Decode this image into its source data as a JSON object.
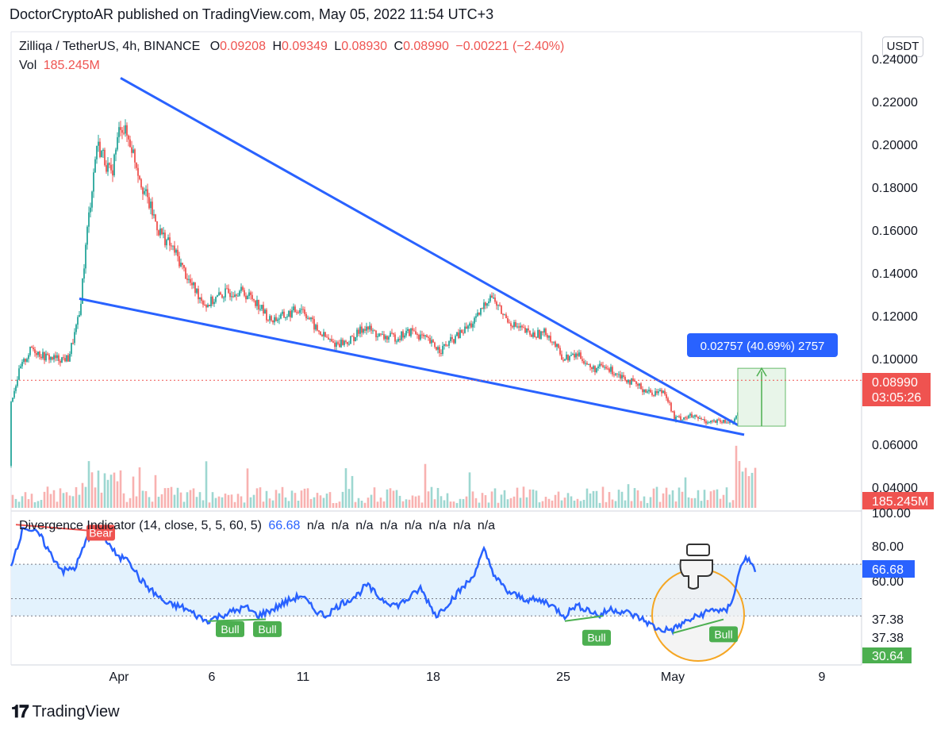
{
  "header": {
    "published_line": "DoctorCryptoAR published on TradingView.com, May 05, 2022 11:54 UTC+3"
  },
  "legend": {
    "symbol": "Zilliqa / TetherUS, 4h, BINANCE",
    "o_label": "O",
    "o_value": "0.09208",
    "h_label": "H",
    "h_value": "0.09349",
    "l_label": "L",
    "l_value": "0.08930",
    "c_label": "C",
    "c_value": "0.08990",
    "change": "−0.00221 (−2.40%)",
    "vol_label": "Vol",
    "vol_value": "185.245M"
  },
  "indicator_legend": {
    "name": "Divergence Indicator (14, close, 5, 5, 60, 5)",
    "value": "66.68",
    "na_values": [
      "n/a",
      "n/a",
      "n/a",
      "n/a",
      "n/a",
      "n/a",
      "n/a",
      "n/a"
    ]
  },
  "currency_button": "USDT",
  "footer": {
    "logo": "𝟏𝟕",
    "brand": "TradingView"
  },
  "colors": {
    "bull": "#26a69a",
    "bear": "#ef5350",
    "trendline": "#2962ff",
    "rsi_line": "#2962ff",
    "band_fill": "#e3f2fd",
    "bull_label": "#4caf50",
    "bear_label": "#ef5350",
    "measure_fill": "#e8f5e9",
    "measure_label": "#2962ff",
    "circle": "#f5a623"
  },
  "chart_data": [
    {
      "type": "candlestick",
      "title": "Zilliqa / TetherUS, 4h, BINANCE",
      "x_ticks": [
        "Apr",
        "6",
        "11",
        "18",
        "25",
        "May",
        "9"
      ],
      "y_ticks": [
        "0.24000",
        "0.22000",
        "0.20000",
        "0.18000",
        "0.16000",
        "0.14000",
        "0.12000",
        "0.10000",
        "0.06000",
        "0.04000"
      ],
      "ylim": [
        0.027,
        0.245
      ],
      "last_price_label": "0.08990",
      "countdown": "03:05:26",
      "volume_label": "185.245M",
      "price_anchors": [
        {
          "t": 0,
          "v": 0.05
        },
        {
          "t": 10,
          "v": 0.075
        },
        {
          "t": 25,
          "v": 0.095
        },
        {
          "t": 40,
          "v": 0.105
        },
        {
          "t": 55,
          "v": 0.101
        },
        {
          "t": 70,
          "v": 0.1
        },
        {
          "t": 86,
          "v": 0.1
        },
        {
          "t": 100,
          "v": 0.12
        },
        {
          "t": 110,
          "v": 0.16
        },
        {
          "t": 122,
          "v": 0.2
        },
        {
          "t": 130,
          "v": 0.195
        },
        {
          "t": 140,
          "v": 0.185
        },
        {
          "t": 152,
          "v": 0.21
        },
        {
          "t": 165,
          "v": 0.2
        },
        {
          "t": 180,
          "v": 0.18
        },
        {
          "t": 200,
          "v": 0.16
        },
        {
          "t": 220,
          "v": 0.15
        },
        {
          "t": 240,
          "v": 0.135
        },
        {
          "t": 260,
          "v": 0.125
        },
        {
          "t": 280,
          "v": 0.13
        },
        {
          "t": 300,
          "v": 0.132
        },
        {
          "t": 320,
          "v": 0.128
        },
        {
          "t": 340,
          "v": 0.118
        },
        {
          "t": 360,
          "v": 0.12
        },
        {
          "t": 380,
          "v": 0.124
        },
        {
          "t": 400,
          "v": 0.113
        },
        {
          "t": 420,
          "v": 0.107
        },
        {
          "t": 440,
          "v": 0.108
        },
        {
          "t": 460,
          "v": 0.115
        },
        {
          "t": 480,
          "v": 0.11
        },
        {
          "t": 500,
          "v": 0.11
        },
        {
          "t": 520,
          "v": 0.113
        },
        {
          "t": 540,
          "v": 0.108
        },
        {
          "t": 555,
          "v": 0.104
        },
        {
          "t": 575,
          "v": 0.11
        },
        {
          "t": 600,
          "v": 0.118
        },
        {
          "t": 618,
          "v": 0.13
        },
        {
          "t": 635,
          "v": 0.12
        },
        {
          "t": 650,
          "v": 0.115
        },
        {
          "t": 670,
          "v": 0.111
        },
        {
          "t": 690,
          "v": 0.112
        },
        {
          "t": 710,
          "v": 0.1
        },
        {
          "t": 730,
          "v": 0.102
        },
        {
          "t": 745,
          "v": 0.095
        },
        {
          "t": 760,
          "v": 0.096
        },
        {
          "t": 780,
          "v": 0.093
        },
        {
          "t": 800,
          "v": 0.088
        },
        {
          "t": 820,
          "v": 0.084
        },
        {
          "t": 838,
          "v": 0.085
        },
        {
          "t": 850,
          "v": 0.072
        },
        {
          "t": 870,
          "v": 0.073
        },
        {
          "t": 890,
          "v": 0.071
        },
        {
          "t": 915,
          "v": 0.07
        },
        {
          "t": 928,
          "v": 0.072
        },
        {
          "t": 935,
          "v": 0.08
        },
        {
          "t": 942,
          "v": 0.092
        },
        {
          "t": 948,
          "v": 0.093
        },
        {
          "t": 953,
          "v": 0.0899
        }
      ],
      "trendlines": [
        {
          "name": "upper-wedge",
          "from": {
            "t": 152,
            "v": 0.231
          },
          "to": {
            "t": 930,
            "v": 0.069
          }
        },
        {
          "name": "lower-wedge",
          "from": {
            "t": 100,
            "v": 0.128
          },
          "to": {
            "t": 938,
            "v": 0.0645
          }
        }
      ],
      "measure_box": {
        "label": "0.02757 (40.69%) 2757",
        "from_v": 0.0685,
        "to_v": 0.0955
      }
    },
    {
      "type": "line",
      "title": "Divergence Indicator (14, close, 5, 5, 60, 5)",
      "y_ticks": [
        "100.00",
        "80.00",
        "60.00",
        "37.38",
        "37.38"
      ],
      "ylim": [
        23,
        100
      ],
      "band": [
        40,
        70
      ],
      "levels": [
        70,
        50,
        40
      ],
      "value_label": "66.68",
      "min_label": "30.64",
      "rsi_anchors": [
        {
          "t": 14,
          "v": 70
        },
        {
          "t": 30,
          "v": 92
        },
        {
          "t": 50,
          "v": 87
        },
        {
          "t": 65,
          "v": 75
        },
        {
          "t": 80,
          "v": 66
        },
        {
          "t": 95,
          "v": 68
        },
        {
          "t": 110,
          "v": 85
        },
        {
          "t": 125,
          "v": 90
        },
        {
          "t": 140,
          "v": 80
        },
        {
          "t": 150,
          "v": 73
        },
        {
          "t": 160,
          "v": 75
        },
        {
          "t": 175,
          "v": 62
        },
        {
          "t": 190,
          "v": 55
        },
        {
          "t": 210,
          "v": 47
        },
        {
          "t": 230,
          "v": 45
        },
        {
          "t": 260,
          "v": 37
        },
        {
          "t": 290,
          "v": 42
        },
        {
          "t": 310,
          "v": 45
        },
        {
          "t": 325,
          "v": 40
        },
        {
          "t": 345,
          "v": 44
        },
        {
          "t": 360,
          "v": 48
        },
        {
          "t": 380,
          "v": 52
        },
        {
          "t": 395,
          "v": 44
        },
        {
          "t": 410,
          "v": 40
        },
        {
          "t": 430,
          "v": 47
        },
        {
          "t": 450,
          "v": 52
        },
        {
          "t": 462,
          "v": 58
        },
        {
          "t": 480,
          "v": 50
        },
        {
          "t": 500,
          "v": 46
        },
        {
          "t": 515,
          "v": 50
        },
        {
          "t": 530,
          "v": 56
        },
        {
          "t": 550,
          "v": 40
        },
        {
          "t": 570,
          "v": 50
        },
        {
          "t": 595,
          "v": 62
        },
        {
          "t": 610,
          "v": 78
        },
        {
          "t": 625,
          "v": 62
        },
        {
          "t": 640,
          "v": 54
        },
        {
          "t": 660,
          "v": 50
        },
        {
          "t": 690,
          "v": 48
        },
        {
          "t": 712,
          "v": 40
        },
        {
          "t": 725,
          "v": 46
        },
        {
          "t": 740,
          "v": 44
        },
        {
          "t": 755,
          "v": 40
        },
        {
          "t": 770,
          "v": 44
        },
        {
          "t": 790,
          "v": 42
        },
        {
          "t": 810,
          "v": 38
        },
        {
          "t": 830,
          "v": 32
        },
        {
          "t": 848,
          "v": 32
        },
        {
          "t": 862,
          "v": 36
        },
        {
          "t": 880,
          "v": 40
        },
        {
          "t": 900,
          "v": 44
        },
        {
          "t": 915,
          "v": 42
        },
        {
          "t": 925,
          "v": 52
        },
        {
          "t": 932,
          "v": 66
        },
        {
          "t": 940,
          "v": 75
        },
        {
          "t": 950,
          "v": 67
        }
      ],
      "markers": [
        {
          "label": "Bear",
          "kind": "bear",
          "t": 127,
          "v": 92
        },
        {
          "label": "Bull",
          "kind": "bull",
          "t": 290,
          "v": 36
        },
        {
          "label": "Bull",
          "kind": "bull",
          "t": 337,
          "v": 36
        },
        {
          "label": "Bull",
          "kind": "bull",
          "t": 752,
          "v": 31
        },
        {
          "label": "Bull",
          "kind": "bull",
          "t": 912,
          "v": 33
        }
      ],
      "divergence_lines": [
        {
          "kind": "bear",
          "from": {
            "t": 20,
            "v": 93
          },
          "to": {
            "t": 127,
            "v": 89
          }
        },
        {
          "kind": "bull",
          "from": {
            "t": 262,
            "v": 37
          },
          "to": {
            "t": 335,
            "v": 38
          }
        },
        {
          "kind": "bull",
          "from": {
            "t": 712,
            "v": 37
          },
          "to": {
            "t": 760,
            "v": 40
          }
        },
        {
          "kind": "bull",
          "from": {
            "t": 848,
            "v": 30
          },
          "to": {
            "t": 912,
            "v": 38
          }
        }
      ]
    }
  ]
}
